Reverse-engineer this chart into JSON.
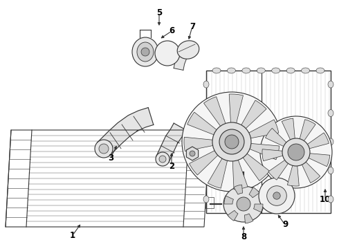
{
  "bg_color": "#ffffff",
  "line_color": "#333333",
  "label_color": "#000000",
  "label_fontsize": 8.5,
  "fig_width": 4.9,
  "fig_height": 3.6,
  "dpi": 100
}
